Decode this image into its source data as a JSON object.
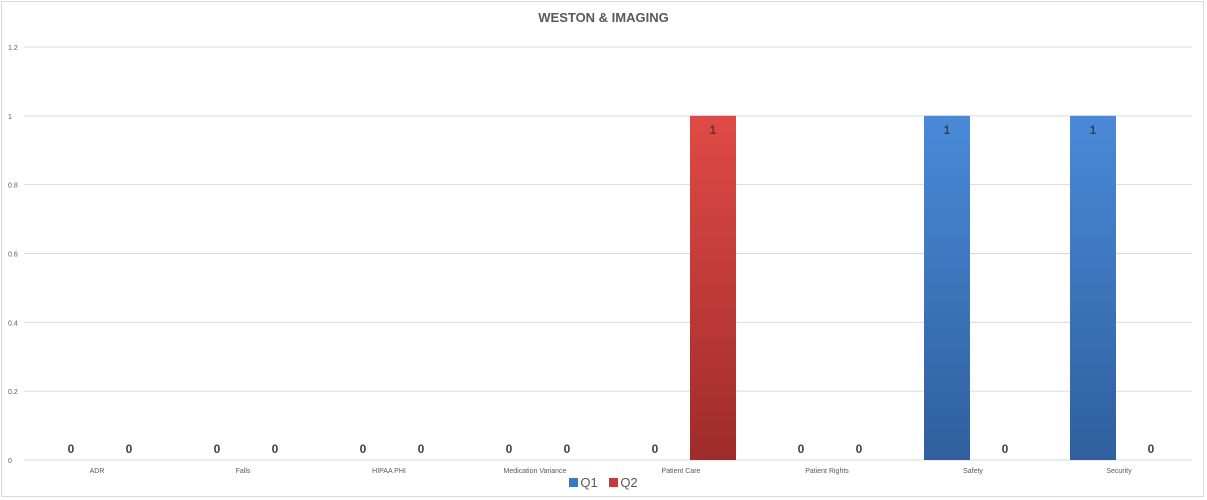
{
  "colors": {
    "q1": "#3a78c6",
    "q2": "#c83a38",
    "grid": "#d9d9d9",
    "text": "#595959"
  },
  "chart_data": {
    "type": "bar",
    "title": "WESTON & IMAGING",
    "xlabel": "",
    "ylabel": "",
    "ylim": [
      0,
      1.2
    ],
    "yticks": [
      "0",
      "0.2",
      "0.4",
      "0.6",
      "0.8",
      "1",
      "1.2"
    ],
    "grid": true,
    "legend_position": "bottom",
    "categories": [
      "ADR",
      "Falls",
      "HIPAA PHI",
      "Medication Variance",
      "Patient Care",
      "Patient Rights",
      "Safety",
      "Security"
    ],
    "series": [
      {
        "name": "Q1",
        "values": [
          0,
          0,
          0,
          0,
          0,
          0,
          1,
          1
        ]
      },
      {
        "name": "Q2",
        "values": [
          0,
          0,
          0,
          0,
          1,
          0,
          0,
          0
        ]
      }
    ]
  }
}
